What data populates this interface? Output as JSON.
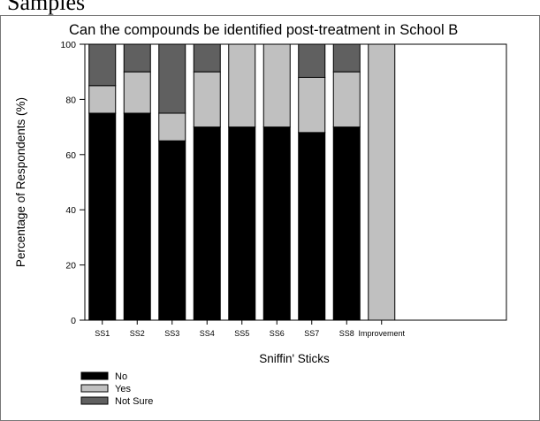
{
  "caption_fragment": "Samples",
  "chart_data": {
    "type": "bar",
    "stacked": true,
    "title": "Can the compounds be identified post-treatment in School B",
    "xlabel": "Sniffin' Sticks",
    "ylabel": "Percentage of Respondents (%)",
    "ylim": [
      0,
      100
    ],
    "yticks": [
      0,
      20,
      40,
      60,
      80,
      100
    ],
    "categories": [
      "SS1",
      "SS2",
      "SS3",
      "SS4",
      "SS5",
      "SS6",
      "SS7",
      "SS8",
      "Improvement"
    ],
    "series": [
      {
        "name": "No",
        "color": "#000000",
        "values": [
          75,
          75,
          65,
          70,
          70,
          70,
          68,
          70,
          0
        ]
      },
      {
        "name": "Yes",
        "color": "#c0c0c0",
        "values": [
          10,
          15,
          10,
          20,
          30,
          30,
          20,
          20,
          100
        ]
      },
      {
        "name": "Not Sure",
        "color": "#606060",
        "values": [
          15,
          10,
          25,
          10,
          0,
          0,
          12,
          10,
          0
        ]
      }
    ],
    "legend_position": "bottom-left",
    "grid": false
  }
}
